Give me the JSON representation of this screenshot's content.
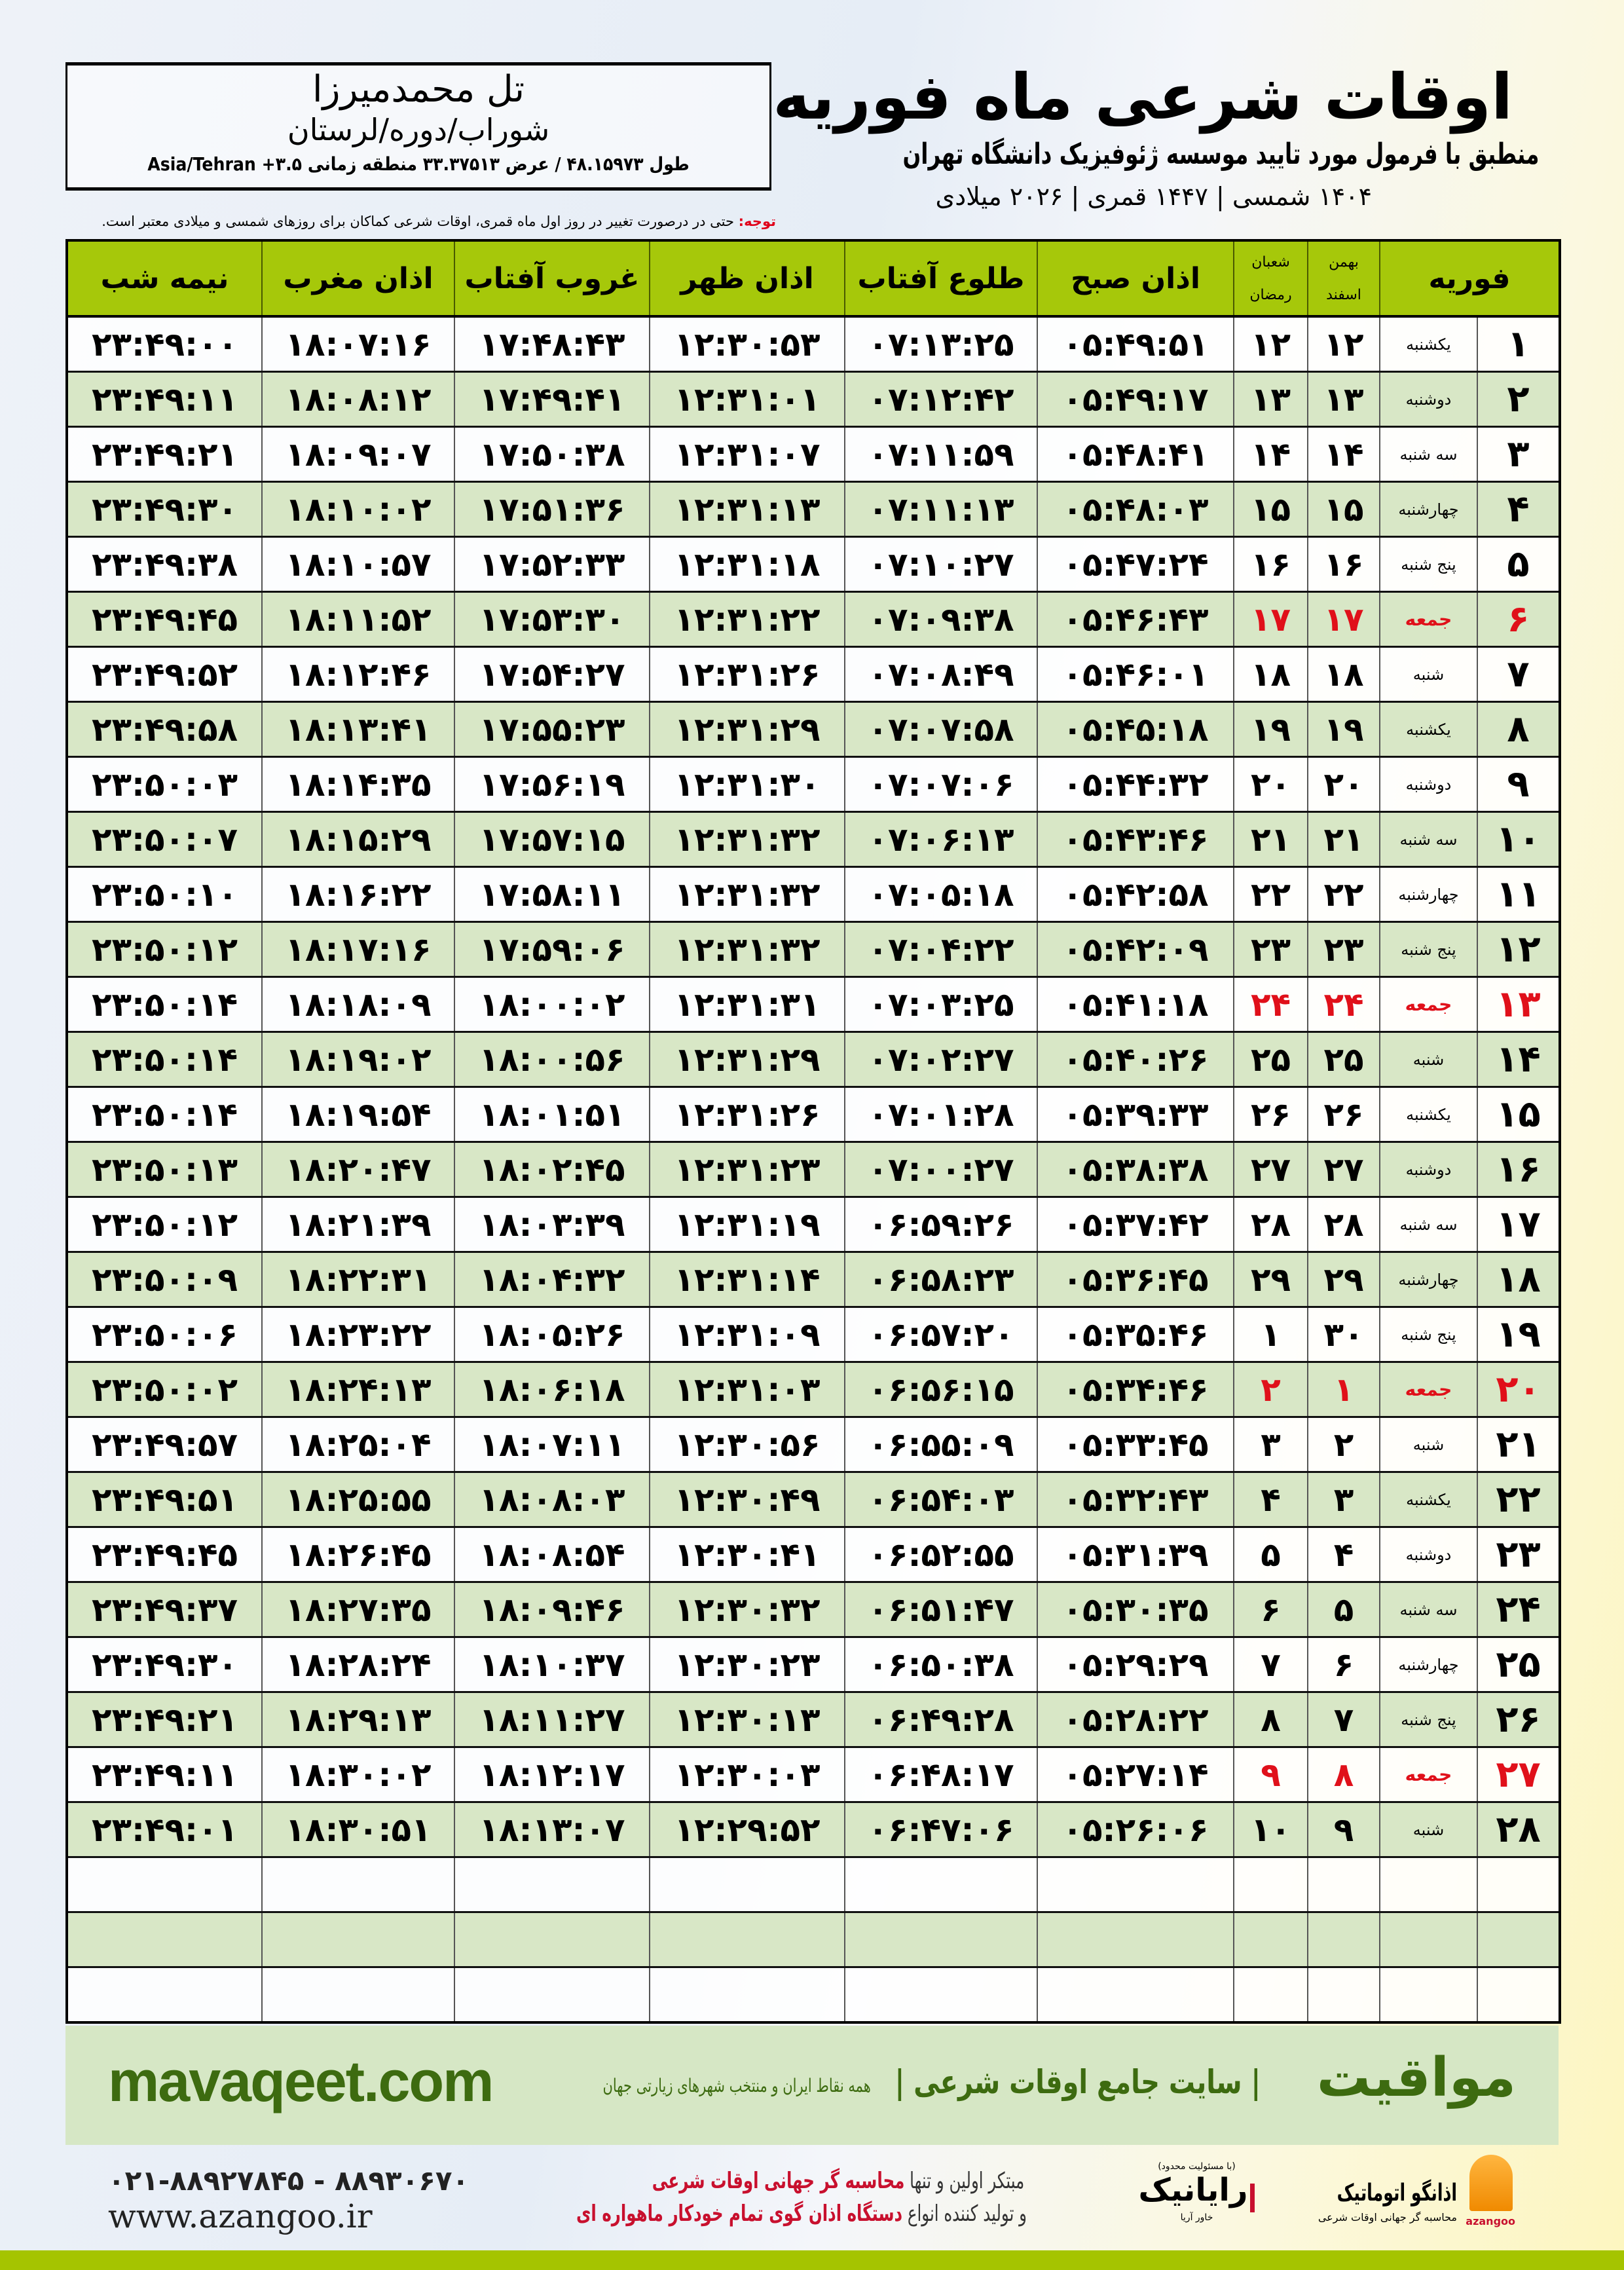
{
  "header": {
    "title": "اوقات شرعی ماه فوریه",
    "subtitle": "منطبق با فرمول مورد تایید موسسه ژئوفیزیک دانشگاه تهران",
    "date_line": "۱۴۰۴ شمسی | ۱۴۴۷ قمری | ۲۰۲۶ میلادی"
  },
  "location": {
    "city": "تل محمدمیرزا",
    "region": "شوراب/دوره/لرستان",
    "coords": "طول ۴۸.۱۵۹۷۳ / عرض ۳۳.۳۷۵۱۳ منطقه زمانی ۳.۵+ Asia/Tehran"
  },
  "note": {
    "label": "توجه:",
    "text": " حتی در درصورت تغییر در روز اول ماه قمری، اوقات شرعی کماکان برای روزهای شمسی و میلادی معتبر است."
  },
  "table": {
    "headers": {
      "month": "فوریه",
      "solar_top": "بهمن",
      "solar_bottom": "اسفند",
      "lunar_top": "شعبان",
      "lunar_bottom": "رمضان",
      "subh": "اذان صبح",
      "tulu": "طلوع آفتاب",
      "zuhr": "اذان ظهر",
      "ghurub": "غروب آفتاب",
      "maghrib": "اذان مغرب",
      "nime_shab": "نیمه شب"
    },
    "rows": [
      {
        "day": "۱",
        "weekday": "یکشنبه",
        "solar": "۱۲",
        "lunar": "۱۲",
        "subh": "۰۵:۴۹:۵۱",
        "tulu": "۰۷:۱۳:۲۵",
        "zuhr": "۱۲:۳۰:۵۳",
        "ghurub": "۱۷:۴۸:۴۳",
        "maghrib": "۱۸:۰۷:۱۶",
        "nime": "۲۳:۴۹:۰۰",
        "holiday": false
      },
      {
        "day": "۲",
        "weekday": "دوشنبه",
        "solar": "۱۳",
        "lunar": "۱۳",
        "subh": "۰۵:۴۹:۱۷",
        "tulu": "۰۷:۱۲:۴۲",
        "zuhr": "۱۲:۳۱:۰۱",
        "ghurub": "۱۷:۴۹:۴۱",
        "maghrib": "۱۸:۰۸:۱۲",
        "nime": "۲۳:۴۹:۱۱",
        "holiday": false
      },
      {
        "day": "۳",
        "weekday": "سه شنبه",
        "solar": "۱۴",
        "lunar": "۱۴",
        "subh": "۰۵:۴۸:۴۱",
        "tulu": "۰۷:۱۱:۵۹",
        "zuhr": "۱۲:۳۱:۰۷",
        "ghurub": "۱۷:۵۰:۳۸",
        "maghrib": "۱۸:۰۹:۰۷",
        "nime": "۲۳:۴۹:۲۱",
        "holiday": false
      },
      {
        "day": "۴",
        "weekday": "چهارشنبه",
        "solar": "۱۵",
        "lunar": "۱۵",
        "subh": "۰۵:۴۸:۰۳",
        "tulu": "۰۷:۱۱:۱۳",
        "zuhr": "۱۲:۳۱:۱۳",
        "ghurub": "۱۷:۵۱:۳۶",
        "maghrib": "۱۸:۱۰:۰۲",
        "nime": "۲۳:۴۹:۳۰",
        "holiday": false
      },
      {
        "day": "۵",
        "weekday": "پنج شنبه",
        "solar": "۱۶",
        "lunar": "۱۶",
        "subh": "۰۵:۴۷:۲۴",
        "tulu": "۰۷:۱۰:۲۷",
        "zuhr": "۱۲:۳۱:۱۸",
        "ghurub": "۱۷:۵۲:۳۳",
        "maghrib": "۱۸:۱۰:۵۷",
        "nime": "۲۳:۴۹:۳۸",
        "holiday": false
      },
      {
        "day": "۶",
        "weekday": "جمعه",
        "solar": "۱۷",
        "lunar": "۱۷",
        "subh": "۰۵:۴۶:۴۳",
        "tulu": "۰۷:۰۹:۳۸",
        "zuhr": "۱۲:۳۱:۲۲",
        "ghurub": "۱۷:۵۳:۳۰",
        "maghrib": "۱۸:۱۱:۵۲",
        "nime": "۲۳:۴۹:۴۵",
        "holiday": true
      },
      {
        "day": "۷",
        "weekday": "شنبه",
        "solar": "۱۸",
        "lunar": "۱۸",
        "subh": "۰۵:۴۶:۰۱",
        "tulu": "۰۷:۰۸:۴۹",
        "zuhr": "۱۲:۳۱:۲۶",
        "ghurub": "۱۷:۵۴:۲۷",
        "maghrib": "۱۸:۱۲:۴۶",
        "nime": "۲۳:۴۹:۵۲",
        "holiday": false
      },
      {
        "day": "۸",
        "weekday": "یکشنبه",
        "solar": "۱۹",
        "lunar": "۱۹",
        "subh": "۰۵:۴۵:۱۸",
        "tulu": "۰۷:۰۷:۵۸",
        "zuhr": "۱۲:۳۱:۲۹",
        "ghurub": "۱۷:۵۵:۲۳",
        "maghrib": "۱۸:۱۳:۴۱",
        "nime": "۲۳:۴۹:۵۸",
        "holiday": false
      },
      {
        "day": "۹",
        "weekday": "دوشنبه",
        "solar": "۲۰",
        "lunar": "۲۰",
        "subh": "۰۵:۴۴:۳۲",
        "tulu": "۰۷:۰۷:۰۶",
        "zuhr": "۱۲:۳۱:۳۰",
        "ghurub": "۱۷:۵۶:۱۹",
        "maghrib": "۱۸:۱۴:۳۵",
        "nime": "۲۳:۵۰:۰۳",
        "holiday": false
      },
      {
        "day": "۱۰",
        "weekday": "سه شنبه",
        "solar": "۲۱",
        "lunar": "۲۱",
        "subh": "۰۵:۴۳:۴۶",
        "tulu": "۰۷:۰۶:۱۳",
        "zuhr": "۱۲:۳۱:۳۲",
        "ghurub": "۱۷:۵۷:۱۵",
        "maghrib": "۱۸:۱۵:۲۹",
        "nime": "۲۳:۵۰:۰۷",
        "holiday": false
      },
      {
        "day": "۱۱",
        "weekday": "چهارشنبه",
        "solar": "۲۲",
        "lunar": "۲۲",
        "subh": "۰۵:۴۲:۵۸",
        "tulu": "۰۷:۰۵:۱۸",
        "zuhr": "۱۲:۳۱:۳۲",
        "ghurub": "۱۷:۵۸:۱۱",
        "maghrib": "۱۸:۱۶:۲۲",
        "nime": "۲۳:۵۰:۱۰",
        "holiday": false
      },
      {
        "day": "۱۲",
        "weekday": "پنج شنبه",
        "solar": "۲۳",
        "lunar": "۲۳",
        "subh": "۰۵:۴۲:۰۹",
        "tulu": "۰۷:۰۴:۲۲",
        "zuhr": "۱۲:۳۱:۳۲",
        "ghurub": "۱۷:۵۹:۰۶",
        "maghrib": "۱۸:۱۷:۱۶",
        "nime": "۲۳:۵۰:۱۲",
        "holiday": false
      },
      {
        "day": "۱۳",
        "weekday": "جمعه",
        "solar": "۲۴",
        "lunar": "۲۴",
        "subh": "۰۵:۴۱:۱۸",
        "tulu": "۰۷:۰۳:۲۵",
        "zuhr": "۱۲:۳۱:۳۱",
        "ghurub": "۱۸:۰۰:۰۲",
        "maghrib": "۱۸:۱۸:۰۹",
        "nime": "۲۳:۵۰:۱۴",
        "holiday": true
      },
      {
        "day": "۱۴",
        "weekday": "شنبه",
        "solar": "۲۵",
        "lunar": "۲۵",
        "subh": "۰۵:۴۰:۲۶",
        "tulu": "۰۷:۰۲:۲۷",
        "zuhr": "۱۲:۳۱:۲۹",
        "ghurub": "۱۸:۰۰:۵۶",
        "maghrib": "۱۸:۱۹:۰۲",
        "nime": "۲۳:۵۰:۱۴",
        "holiday": false
      },
      {
        "day": "۱۵",
        "weekday": "یکشنبه",
        "solar": "۲۶",
        "lunar": "۲۶",
        "subh": "۰۵:۳۹:۳۳",
        "tulu": "۰۷:۰۱:۲۸",
        "zuhr": "۱۲:۳۱:۲۶",
        "ghurub": "۱۸:۰۱:۵۱",
        "maghrib": "۱۸:۱۹:۵۴",
        "nime": "۲۳:۵۰:۱۴",
        "holiday": false
      },
      {
        "day": "۱۶",
        "weekday": "دوشنبه",
        "solar": "۲۷",
        "lunar": "۲۷",
        "subh": "۰۵:۳۸:۳۸",
        "tulu": "۰۷:۰۰:۲۷",
        "zuhr": "۱۲:۳۱:۲۳",
        "ghurub": "۱۸:۰۲:۴۵",
        "maghrib": "۱۸:۲۰:۴۷",
        "nime": "۲۳:۵۰:۱۳",
        "holiday": false
      },
      {
        "day": "۱۷",
        "weekday": "سه شنبه",
        "solar": "۲۸",
        "lunar": "۲۸",
        "subh": "۰۵:۳۷:۴۲",
        "tulu": "۰۶:۵۹:۲۶",
        "zuhr": "۱۲:۳۱:۱۹",
        "ghurub": "۱۸:۰۳:۳۹",
        "maghrib": "۱۸:۲۱:۳۹",
        "nime": "۲۳:۵۰:۱۲",
        "holiday": false
      },
      {
        "day": "۱۸",
        "weekday": "چهارشنبه",
        "solar": "۲۹",
        "lunar": "۲۹",
        "subh": "۰۵:۳۶:۴۵",
        "tulu": "۰۶:۵۸:۲۳",
        "zuhr": "۱۲:۳۱:۱۴",
        "ghurub": "۱۸:۰۴:۳۲",
        "maghrib": "۱۸:۲۲:۳۱",
        "nime": "۲۳:۵۰:۰۹",
        "holiday": false
      },
      {
        "day": "۱۹",
        "weekday": "پنج شنبه",
        "solar": "۳۰",
        "lunar": "۱",
        "subh": "۰۵:۳۵:۴۶",
        "tulu": "۰۶:۵۷:۲۰",
        "zuhr": "۱۲:۳۱:۰۹",
        "ghurub": "۱۸:۰۵:۲۶",
        "maghrib": "۱۸:۲۳:۲۲",
        "nime": "۲۳:۵۰:۰۶",
        "holiday": false
      },
      {
        "day": "۲۰",
        "weekday": "جمعه",
        "solar": "۱",
        "lunar": "۲",
        "subh": "۰۵:۳۴:۴۶",
        "tulu": "۰۶:۵۶:۱۵",
        "zuhr": "۱۲:۳۱:۰۳",
        "ghurub": "۱۸:۰۶:۱۸",
        "maghrib": "۱۸:۲۴:۱۳",
        "nime": "۲۳:۵۰:۰۲",
        "holiday": true
      },
      {
        "day": "۲۱",
        "weekday": "شنبه",
        "solar": "۲",
        "lunar": "۳",
        "subh": "۰۵:۳۳:۴۵",
        "tulu": "۰۶:۵۵:۰۹",
        "zuhr": "۱۲:۳۰:۵۶",
        "ghurub": "۱۸:۰۷:۱۱",
        "maghrib": "۱۸:۲۵:۰۴",
        "nime": "۲۳:۴۹:۵۷",
        "holiday": false
      },
      {
        "day": "۲۲",
        "weekday": "یکشنبه",
        "solar": "۳",
        "lunar": "۴",
        "subh": "۰۵:۳۲:۴۳",
        "tulu": "۰۶:۵۴:۰۳",
        "zuhr": "۱۲:۳۰:۴۹",
        "ghurub": "۱۸:۰۸:۰۳",
        "maghrib": "۱۸:۲۵:۵۵",
        "nime": "۲۳:۴۹:۵۱",
        "holiday": false
      },
      {
        "day": "۲۳",
        "weekday": "دوشنبه",
        "solar": "۴",
        "lunar": "۵",
        "subh": "۰۵:۳۱:۳۹",
        "tulu": "۰۶:۵۲:۵۵",
        "zuhr": "۱۲:۳۰:۴۱",
        "ghurub": "۱۸:۰۸:۵۴",
        "maghrib": "۱۸:۲۶:۴۵",
        "nime": "۲۳:۴۹:۴۵",
        "holiday": false
      },
      {
        "day": "۲۴",
        "weekday": "سه شنبه",
        "solar": "۵",
        "lunar": "۶",
        "subh": "۰۵:۳۰:۳۵",
        "tulu": "۰۶:۵۱:۴۷",
        "zuhr": "۱۲:۳۰:۳۲",
        "ghurub": "۱۸:۰۹:۴۶",
        "maghrib": "۱۸:۲۷:۳۵",
        "nime": "۲۳:۴۹:۳۷",
        "holiday": false
      },
      {
        "day": "۲۵",
        "weekday": "چهارشنبه",
        "solar": "۶",
        "lunar": "۷",
        "subh": "۰۵:۲۹:۲۹",
        "tulu": "۰۶:۵۰:۳۸",
        "zuhr": "۱۲:۳۰:۲۳",
        "ghurub": "۱۸:۱۰:۳۷",
        "maghrib": "۱۸:۲۸:۲۴",
        "nime": "۲۳:۴۹:۳۰",
        "holiday": false
      },
      {
        "day": "۲۶",
        "weekday": "پنج شنبه",
        "solar": "۷",
        "lunar": "۸",
        "subh": "۰۵:۲۸:۲۲",
        "tulu": "۰۶:۴۹:۲۸",
        "zuhr": "۱۲:۳۰:۱۳",
        "ghurub": "۱۸:۱۱:۲۷",
        "maghrib": "۱۸:۲۹:۱۳",
        "nime": "۲۳:۴۹:۲۱",
        "holiday": false
      },
      {
        "day": "۲۷",
        "weekday": "جمعه",
        "solar": "۸",
        "lunar": "۹",
        "subh": "۰۵:۲۷:۱۴",
        "tulu": "۰۶:۴۸:۱۷",
        "zuhr": "۱۲:۳۰:۰۳",
        "ghurub": "۱۸:۱۲:۱۷",
        "maghrib": "۱۸:۳۰:۰۲",
        "nime": "۲۳:۴۹:۱۱",
        "holiday": true
      },
      {
        "day": "۲۸",
        "weekday": "شنبه",
        "solar": "۹",
        "lunar": "۱۰",
        "subh": "۰۵:۲۶:۰۶",
        "tulu": "۰۶:۴۷:۰۶",
        "zuhr": "۱۲:۲۹:۵۲",
        "ghurub": "۱۸:۱۳:۰۷",
        "maghrib": "۱۸:۳۰:۵۱",
        "nime": "۲۳:۴۹:۰۱",
        "holiday": false
      }
    ],
    "empty_rows": 3
  },
  "footer": {
    "brand": "مواقیت",
    "tagline": "| سایت جامع اوقات شرعی |",
    "tag_sub": "همه نقاط ایران و منتخب شهرهای زیارتی جهان",
    "site": "mavaqeet.com",
    "phone": "۰۲۱-۸۸۹۲۷۸۴۵ - ۸۸۹۳۰۶۷۰",
    "web": "www.azangoo.ir",
    "promo_line1_a": "مبتکر اولین و تنها ",
    "promo_line1_b": "محاسبه گر جهانی اوقات شرعی",
    "promo_line2_a": "و تولید کننده انواع ",
    "promo_line2_b": "دستگاه اذان گوی تمام خودکار ماهواره ای",
    "rayanik_small": "(با مسئولیت محدود)",
    "rayanik_name": "رایانیک",
    "rayanik_sub": "خاور آریا",
    "azangoo_name": "اذانگو اتوماتیک",
    "azangoo_sub": "محاسبه گر جهانی اوقات شرعی",
    "azangoo_en": "azangoo"
  },
  "colors": {
    "header_green": "#a6c80a",
    "row_green": "#d8e7c6",
    "holiday_red": "#e0101a",
    "brand_green": "#3d6b10",
    "bottom_bar": "#a5c400"
  }
}
